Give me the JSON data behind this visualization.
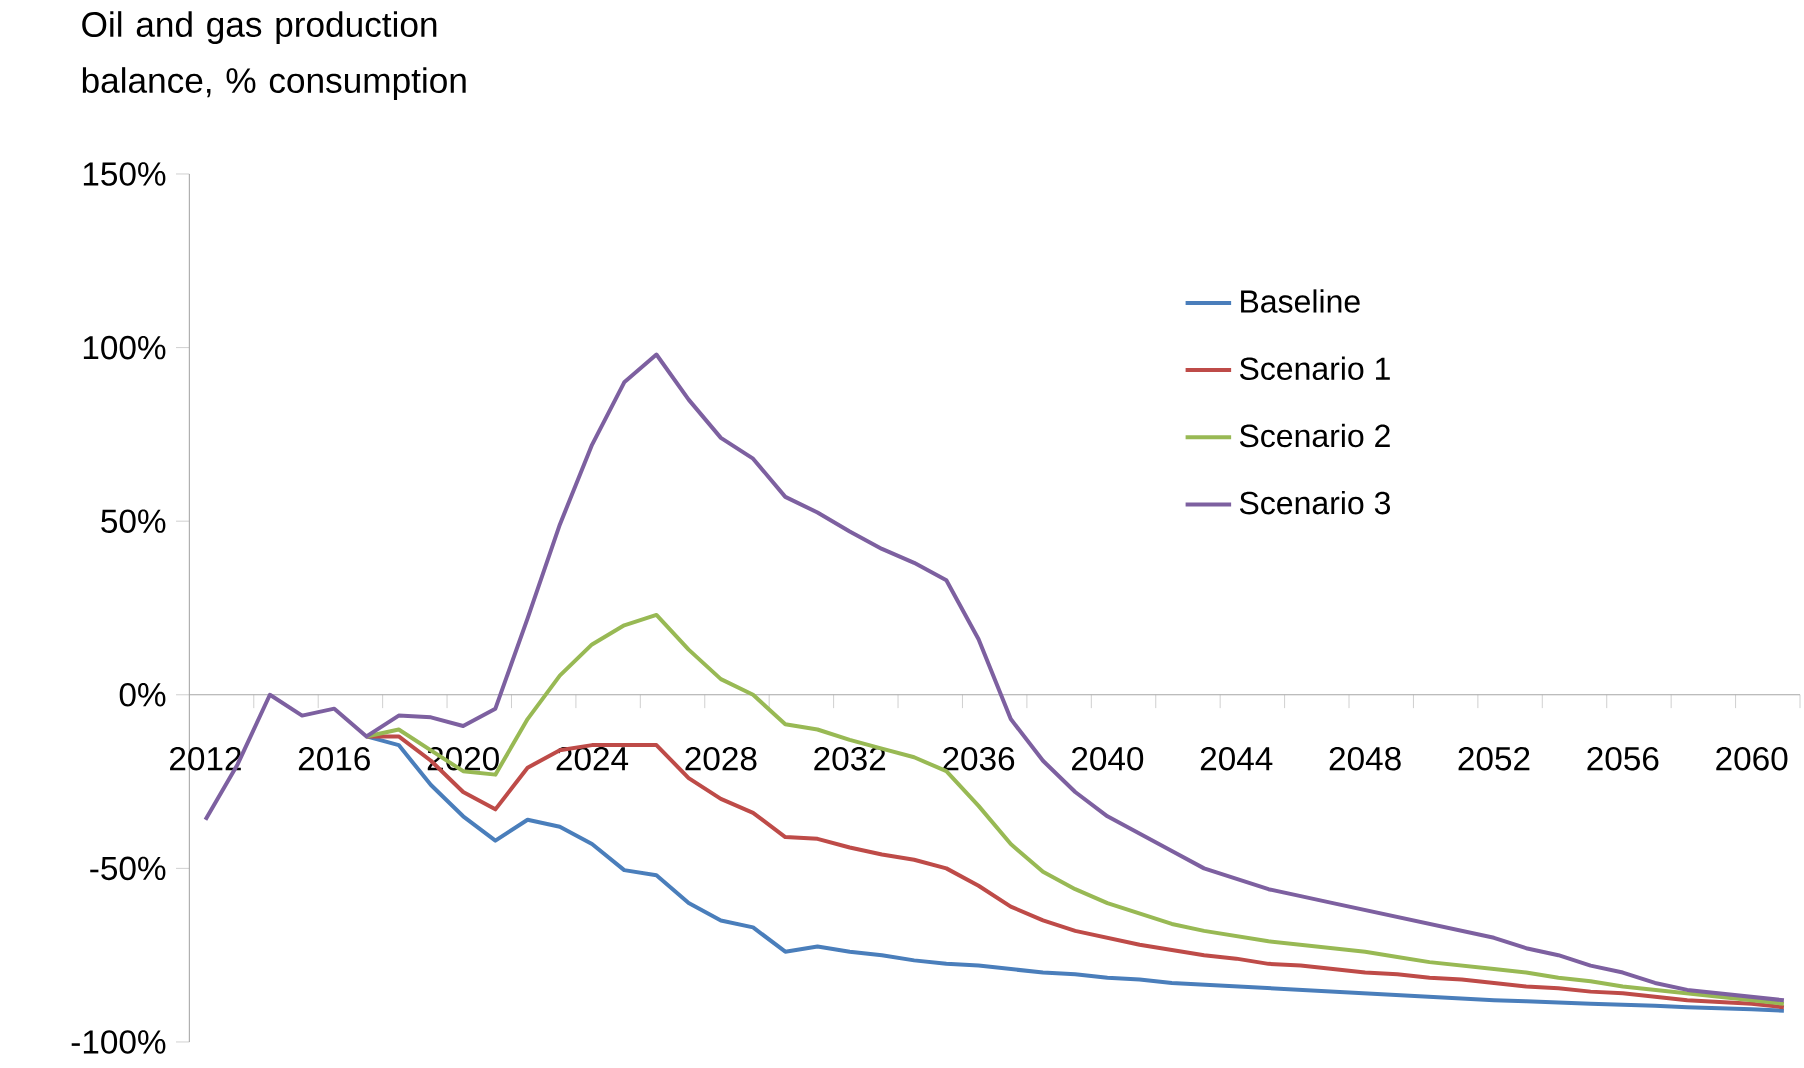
{
  "chart_data": {
    "type": "line",
    "title": "Oil and gas production balance, % consumption",
    "categories": [
      "2012",
      null,
      null,
      null,
      "2016",
      null,
      null,
      null,
      "2020",
      null,
      null,
      null,
      "2024",
      null,
      null,
      null,
      "2028",
      null,
      null,
      null,
      "2032",
      null,
      null,
      null,
      "2036",
      null,
      null,
      null,
      "2040",
      null,
      null,
      null,
      "2044",
      null,
      null,
      null,
      "2048",
      null,
      null,
      null,
      "2052",
      null,
      null,
      null,
      "2056",
      null,
      null,
      null,
      "2060",
      null
    ],
    "series": [
      {
        "name": "Baseline",
        "color": "#4a7ebb",
        "values": [
          null,
          null,
          null,
          null,
          null,
          -12,
          -14.5,
          -26,
          -35,
          -42,
          -36,
          -38,
          -43,
          -50.5,
          -52,
          -60,
          -65,
          -67,
          -74,
          -72.5,
          -74,
          -75,
          -76.5,
          -77.5,
          -78,
          -79,
          -80,
          -80.5,
          -81.5,
          -82,
          -83,
          -83.5,
          -84,
          -84.5,
          -85,
          -85.5,
          -86,
          -86.5,
          -87,
          -87.5,
          -88,
          -88.3,
          -88.6,
          -89,
          -89.3,
          -89.6,
          -90,
          -90.3,
          -90.6,
          -91
        ]
      },
      {
        "name": "Scenario 1",
        "color": "#be4b48",
        "values": [
          null,
          null,
          null,
          null,
          null,
          -12,
          -12,
          -19,
          -28,
          -33,
          -21,
          -16,
          -14.5,
          -14.5,
          -14.5,
          -24,
          -30,
          -34,
          -41,
          -41.5,
          -44,
          -46,
          -47.5,
          -50,
          -55,
          -61,
          -65,
          -68,
          -70,
          -72,
          -73.5,
          -75,
          -76,
          -77.5,
          -78,
          -79,
          -80,
          -80.5,
          -81.5,
          -82,
          -83,
          -84,
          -84.5,
          -85.5,
          -86,
          -87,
          -88,
          -88.5,
          -89,
          -90
        ]
      },
      {
        "name": "Scenario 2",
        "color": "#98b954",
        "values": [
          null,
          null,
          null,
          null,
          null,
          -12,
          -10,
          -16,
          -22,
          -23,
          -7,
          5.5,
          14.5,
          20,
          23,
          13,
          4.5,
          0,
          -8.5,
          -10,
          -13,
          -15.5,
          -18,
          -22,
          -32,
          -43,
          -51,
          -56,
          -60,
          -63,
          -66,
          -68,
          -69.5,
          -71,
          -72,
          -73,
          -74,
          -75.5,
          -77,
          -78,
          -79,
          -80,
          -81.5,
          -82.5,
          -84,
          -85,
          -86,
          -87,
          -88,
          -89
        ]
      },
      {
        "name": "Scenario 3",
        "color": "#7d60a0",
        "values": [
          -36,
          -20,
          0,
          -6,
          -4,
          -12,
          -6,
          -6.5,
          -9,
          -4,
          22,
          49,
          72,
          90,
          98,
          85,
          74,
          68,
          57,
          52.5,
          47,
          42,
          38,
          33,
          16,
          -7,
          -19,
          -28,
          -35,
          -40,
          -45,
          -50,
          -53,
          -56,
          -58,
          -60,
          -62,
          -64,
          -66,
          -68,
          -70,
          -73,
          -75,
          -78,
          -80,
          -83,
          -85,
          -86,
          -87,
          -88
        ]
      }
    ],
    "ylim": [
      -100,
      150
    ],
    "yticks": [
      {
        "value": -100,
        "label": "-100%"
      },
      {
        "value": -50,
        "label": "-50%"
      },
      {
        "value": 0,
        "label": "0%"
      },
      {
        "value": 50,
        "label": "50%"
      },
      {
        "value": 100,
        "label": "100%"
      },
      {
        "value": 150,
        "label": "150%"
      }
    ],
    "legend": "top right"
  }
}
